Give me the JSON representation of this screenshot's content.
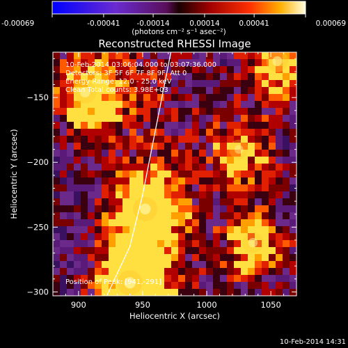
{
  "colorbar": {
    "tick_labels": [
      "-0.00069",
      "-0.00041",
      "-0.00014",
      "0.00014",
      "0.00041",
      "0.00069"
    ],
    "unit_label": "(photons cm⁻² s⁻¹ asec⁻²)",
    "range": [
      -0.00069,
      0.00069
    ]
  },
  "chart_data": {
    "type": "heatmap",
    "title": "Reconstructed RHESSI Image",
    "xlabel": "Heliocentric X (arcsec)",
    "ylabel": "Heliocentric Y (arcsec)",
    "xlim": [
      880,
      1070
    ],
    "ylim": [
      -303,
      -115
    ],
    "x_ticks": [
      {
        "value": 900,
        "label": "900"
      },
      {
        "value": 950,
        "label": "950"
      },
      {
        "value": 1000,
        "label": "1000"
      },
      {
        "value": 1050,
        "label": "1050"
      }
    ],
    "y_ticks": [
      {
        "value": -150,
        "label": "−150"
      },
      {
        "value": -200,
        "label": "−200"
      },
      {
        "value": -250,
        "label": "−250"
      },
      {
        "value": -300,
        "label": "−300"
      }
    ],
    "annotations": {
      "time_range": "10-Feb-2014 03:06:04.000 to 03:07:36.000",
      "detectors": "Detectors: 3F 5F 6F 7F 8F 9F, Att 0",
      "energy": "Energy Range: 12.0 - 25.0 keV",
      "clean": "Clean    Total counts: 3.98E+03",
      "position": "Position of Peak:  [941,-291]"
    },
    "peak": [
      941,
      -291
    ],
    "bright_sources": [
      {
        "x": 940,
        "y": -293,
        "intensity": 1.0
      },
      {
        "x": 952,
        "y": -236,
        "intensity": 0.95
      },
      {
        "x": 905,
        "y": -146,
        "intensity": 0.82
      },
      {
        "x": 1036,
        "y": -262,
        "intensity": 0.7
      },
      {
        "x": 1055,
        "y": -122,
        "intensity": 0.78
      },
      {
        "x": 1025,
        "y": -190,
        "intensity": 0.6
      }
    ],
    "limb_curve": [
      [
        922,
        -303
      ],
      [
        940,
        -265
      ],
      [
        950,
        -225
      ],
      [
        958,
        -185
      ],
      [
        965,
        -150
      ],
      [
        972,
        -115
      ]
    ]
  },
  "footer": {
    "timestamp": "10-Feb-2014 14:31"
  }
}
